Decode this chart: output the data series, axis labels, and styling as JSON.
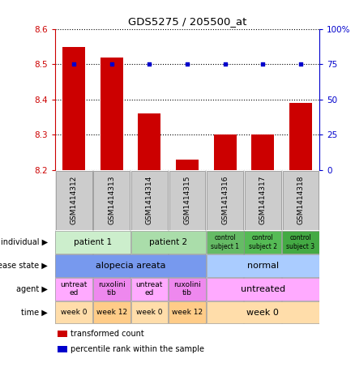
{
  "title": "GDS5275 / 205500_at",
  "samples": [
    "GSM1414312",
    "GSM1414313",
    "GSM1414314",
    "GSM1414315",
    "GSM1414316",
    "GSM1414317",
    "GSM1414318"
  ],
  "bar_values": [
    8.55,
    8.52,
    8.36,
    8.23,
    8.3,
    8.3,
    8.39
  ],
  "dot_values": [
    75,
    75,
    75,
    75,
    75,
    75,
    75
  ],
  "ylim_left": [
    8.2,
    8.6
  ],
  "ylim_right": [
    0,
    100
  ],
  "yticks_left": [
    8.2,
    8.3,
    8.4,
    8.5,
    8.6
  ],
  "yticks_right": [
    0,
    25,
    50,
    75,
    100
  ],
  "bar_color": "#cc0000",
  "dot_color": "#0000cc",
  "bar_width": 0.6,
  "annotation_rows": {
    "individual": {
      "label": "individual",
      "cells": [
        {
          "span": [
            0,
            1
          ],
          "text": "patient 1",
          "color": "#cceecc",
          "fontsize": 7.5
        },
        {
          "span": [
            2,
            3
          ],
          "text": "patient 2",
          "color": "#aaddaa",
          "fontsize": 7.5
        },
        {
          "span": [
            4,
            4
          ],
          "text": "control\nsubject 1",
          "color": "#66bb66",
          "fontsize": 5.5
        },
        {
          "span": [
            5,
            5
          ],
          "text": "control\nsubject 2",
          "color": "#55bb55",
          "fontsize": 5.5
        },
        {
          "span": [
            6,
            6
          ],
          "text": "control\nsubject 3",
          "color": "#44aa44",
          "fontsize": 5.5
        }
      ]
    },
    "disease_state": {
      "label": "disease state",
      "cells": [
        {
          "span": [
            0,
            3
          ],
          "text": "alopecia areata",
          "color": "#7799ee",
          "fontsize": 8
        },
        {
          "span": [
            4,
            6
          ],
          "text": "normal",
          "color": "#aaccff",
          "fontsize": 8
        }
      ]
    },
    "agent": {
      "label": "agent",
      "cells": [
        {
          "span": [
            0,
            0
          ],
          "text": "untreat\ned",
          "color": "#ffaaff",
          "fontsize": 6.5
        },
        {
          "span": [
            1,
            1
          ],
          "text": "ruxolini\ntib",
          "color": "#ee88ee",
          "fontsize": 6.5
        },
        {
          "span": [
            2,
            2
          ],
          "text": "untreat\ned",
          "color": "#ffaaff",
          "fontsize": 6.5
        },
        {
          "span": [
            3,
            3
          ],
          "text": "ruxolini\ntib",
          "color": "#ee88ee",
          "fontsize": 6.5
        },
        {
          "span": [
            4,
            6
          ],
          "text": "untreated",
          "color": "#ffaaff",
          "fontsize": 8
        }
      ]
    },
    "time": {
      "label": "time",
      "cells": [
        {
          "span": [
            0,
            0
          ],
          "text": "week 0",
          "color": "#ffddaa",
          "fontsize": 6.5
        },
        {
          "span": [
            1,
            1
          ],
          "text": "week 12",
          "color": "#ffcc88",
          "fontsize": 6.5
        },
        {
          "span": [
            2,
            2
          ],
          "text": "week 0",
          "color": "#ffddaa",
          "fontsize": 6.5
        },
        {
          "span": [
            3,
            3
          ],
          "text": "week 12",
          "color": "#ffcc88",
          "fontsize": 6.5
        },
        {
          "span": [
            4,
            6
          ],
          "text": "week 0",
          "color": "#ffddaa",
          "fontsize": 8
        }
      ]
    }
  },
  "row_order": [
    "individual",
    "disease_state",
    "agent",
    "time"
  ],
  "row_labels": [
    "individual",
    "disease state",
    "agent",
    "time"
  ],
  "legend_items": [
    {
      "color": "#cc0000",
      "label": "transformed count"
    },
    {
      "color": "#0000cc",
      "label": "percentile rank within the sample"
    }
  ],
  "grid_color": "#000000",
  "left_axis_color": "#cc0000",
  "right_axis_color": "#0000cc",
  "sample_box_color": "#cccccc",
  "sample_box_edge": "#888888"
}
